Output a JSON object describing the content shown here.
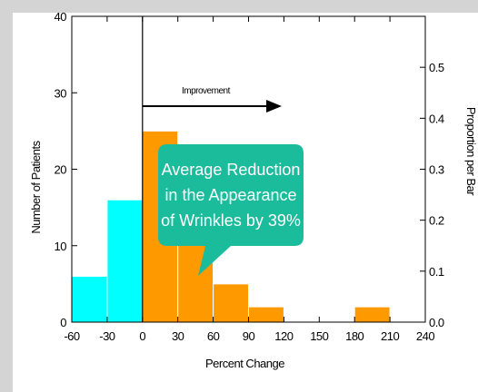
{
  "chart_data": {
    "type": "bar",
    "title": "",
    "xlabel": "Percent Change",
    "ylabel": "Number of Patients",
    "y2label": "Proportion per Bar",
    "xlim": [
      -60,
      240
    ],
    "ylim": [
      0,
      40
    ],
    "y2lim": [
      0,
      0.6
    ],
    "x_ticks": [
      "-60",
      "-30",
      "0",
      "30",
      "60",
      "90",
      "120",
      "150",
      "180",
      "210",
      "240"
    ],
    "y_ticks": [
      "0",
      "10",
      "20",
      "30",
      "40"
    ],
    "y2_ticks": [
      "0.0",
      "0.1",
      "0.2",
      "0.3",
      "0.4",
      "0.5"
    ],
    "bin_width": 30,
    "bins": [
      {
        "start": -60,
        "value": 6,
        "color": "#00ffff"
      },
      {
        "start": -30,
        "value": 16,
        "color": "#00ffff"
      },
      {
        "start": 0,
        "value": 25,
        "color": "#ff9900"
      },
      {
        "start": 30,
        "value": 11,
        "color": "#ff9900"
      },
      {
        "start": 60,
        "value": 5,
        "color": "#ff9900"
      },
      {
        "start": 90,
        "value": 2,
        "color": "#ff9900"
      },
      {
        "start": 120,
        "value": 0,
        "color": "#ff9900"
      },
      {
        "start": 150,
        "value": 0,
        "color": "#ff9900"
      },
      {
        "start": 180,
        "value": 2,
        "color": "#ff9900"
      },
      {
        "start": 210,
        "value": 0,
        "color": "#ff9900"
      }
    ],
    "reference_line_x": 0,
    "improvement_label": "Improvement",
    "callout": {
      "lines": [
        "Average Reduction",
        "in the Appearance",
        "of Wrinkles by 39%"
      ],
      "color": "#1abc9c"
    },
    "grid": false
  }
}
